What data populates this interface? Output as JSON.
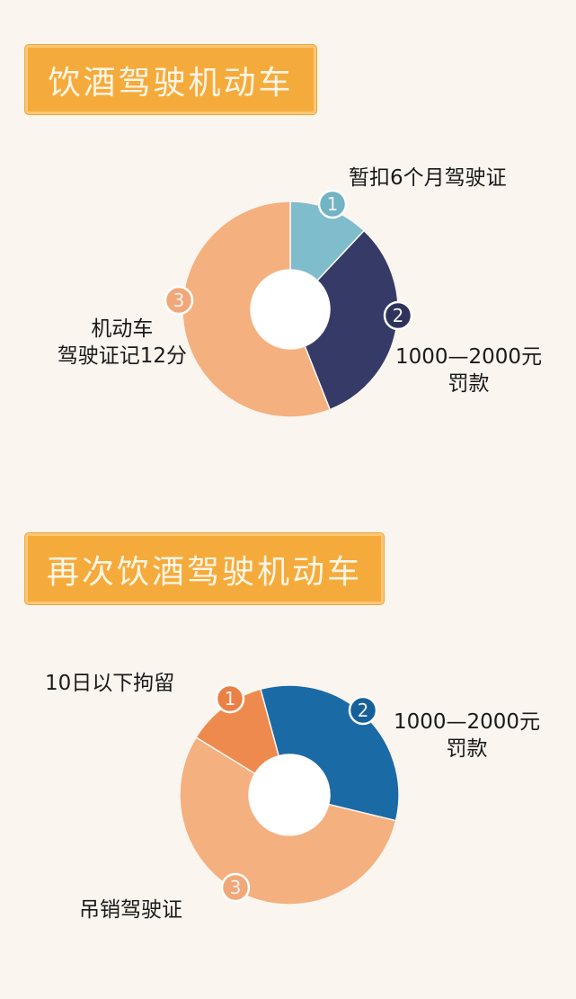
{
  "background": "#fbf5ef",
  "chart_data": [
    {
      "type": "pie",
      "donut": true,
      "title": "饮酒驾驶机动车",
      "categories": [
        "暂扣6个月驾驶证",
        "1000—2000元罚款",
        "机动车驾驶证记12分"
      ],
      "label_lines": [
        [
          "暂扣6个月驾驶证"
        ],
        [
          "1000—2000元",
          "罚款"
        ],
        [
          "机动车",
          "驾驶证记12分"
        ]
      ],
      "markers": [
        "1",
        "2",
        "3"
      ],
      "values": [
        12,
        32,
        56
      ],
      "colors": [
        "#7fbccc",
        "#353b66",
        "#f4b07f"
      ],
      "marker_colors": [
        "#72b3c4",
        "#2e335c",
        "#f1a878"
      ]
    },
    {
      "type": "pie",
      "donut": true,
      "title": "再次饮酒驾驶机动车",
      "categories": [
        "10日以下拘留",
        "1000—2000元罚款",
        "吊销驾驶证"
      ],
      "label_lines": [
        [
          "10日以下拘留"
        ],
        [
          "1000—2000元",
          "罚款"
        ],
        [
          "吊销驾驶证"
        ]
      ],
      "markers": [
        "1",
        "2",
        "3"
      ],
      "values": [
        12,
        33,
        55
      ],
      "colors": [
        "#ef8a4e",
        "#1a6aa6",
        "#f4b07f"
      ],
      "marker_colors": [
        "#ea8045",
        "#16609a",
        "#f1a878"
      ]
    }
  ]
}
